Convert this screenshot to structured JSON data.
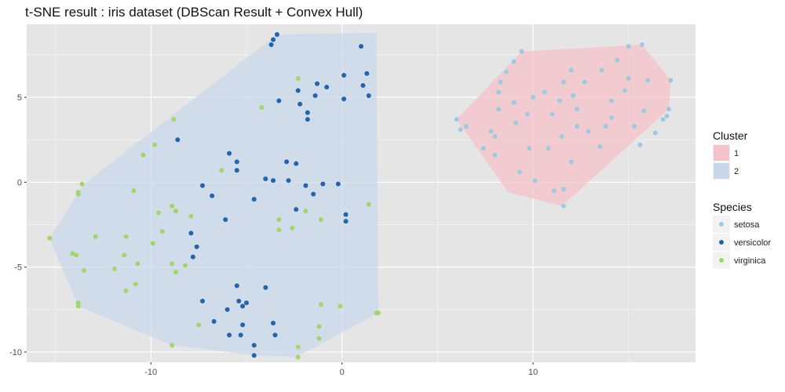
{
  "chart_data": {
    "type": "scatter",
    "title": "t-SNE result : iris dataset (DBScan Result + Convex Hull)",
    "xlabel": "",
    "ylabel": "",
    "xlim": [
      -16.5,
      18.5
    ],
    "ylim": [
      -10.6,
      9.3
    ],
    "x_ticks": [
      -10,
      0,
      10
    ],
    "y_ticks": [
      -10,
      -5,
      0,
      5
    ],
    "grid": true,
    "legend_placement": "right",
    "background": "#e5e5e5",
    "gridline_color": "#ffffff",
    "hulls": {
      "title": "Cluster",
      "groups": [
        {
          "name": "1",
          "color": "#f4c2c8",
          "points": [
            [
              6.0,
              3.7
            ],
            [
              9.4,
              7.7
            ],
            [
              15.7,
              8.1
            ],
            [
              17.2,
              6.0
            ],
            [
              17.1,
              4.3
            ],
            [
              11.5,
              -1.4
            ],
            [
              8.7,
              -0.6
            ]
          ]
        },
        {
          "name": "2",
          "color": "#c8d8ea",
          "points": [
            [
              -3.4,
              8.7
            ],
            [
              1.8,
              8.8
            ],
            [
              1.9,
              -7.7
            ],
            [
              -2.4,
              -10.3
            ],
            [
              -4.6,
              -10.2
            ],
            [
              -8.9,
              -9.6
            ],
            [
              -13.8,
              -7.3
            ],
            [
              -15.3,
              -3.3
            ],
            [
              -13.5,
              -0.1
            ]
          ]
        }
      ]
    },
    "series": [
      {
        "name": "setosa",
        "color": "#9ecae1",
        "points": [
          [
            6.0,
            3.7
          ],
          [
            6.2,
            3.1
          ],
          [
            6.5,
            3.3
          ],
          [
            7.4,
            2.0
          ],
          [
            7.8,
            3.0
          ],
          [
            8.0,
            2.7
          ],
          [
            8.0,
            1.6
          ],
          [
            8.2,
            5.3
          ],
          [
            8.3,
            5.9
          ],
          [
            8.2,
            4.3
          ],
          [
            8.6,
            6.5
          ],
          [
            9.0,
            4.7
          ],
          [
            9.1,
            3.5
          ],
          [
            9.3,
            0.6
          ],
          [
            9.4,
            7.7
          ],
          [
            9.0,
            7.1
          ],
          [
            9.7,
            4.0
          ],
          [
            9.8,
            2.0
          ],
          [
            10.0,
            5.0
          ],
          [
            10.1,
            0.1
          ],
          [
            10.6,
            5.3
          ],
          [
            10.8,
            2.0
          ],
          [
            11.0,
            4.0
          ],
          [
            11.1,
            -0.5
          ],
          [
            11.4,
            4.8
          ],
          [
            11.5,
            2.7
          ],
          [
            11.6,
            -1.4
          ],
          [
            11.6,
            -0.4
          ],
          [
            11.6,
            5.9
          ],
          [
            12.0,
            1.2
          ],
          [
            12.0,
            6.6
          ],
          [
            12.1,
            5.1
          ],
          [
            12.3,
            4.3
          ],
          [
            12.3,
            3.3
          ],
          [
            12.7,
            5.9
          ],
          [
            12.9,
            3.0
          ],
          [
            13.5,
            2.1
          ],
          [
            13.6,
            6.6
          ],
          [
            13.8,
            3.3
          ],
          [
            14.1,
            4.8
          ],
          [
            14.1,
            3.8
          ],
          [
            14.4,
            7.2
          ],
          [
            14.8,
            5.4
          ],
          [
            15.0,
            8.0
          ],
          [
            15.0,
            6.1
          ],
          [
            15.3,
            3.3
          ],
          [
            15.6,
            2.2
          ],
          [
            15.8,
            4.2
          ],
          [
            15.7,
            8.1
          ],
          [
            16.0,
            6.0
          ],
          [
            16.4,
            2.9
          ],
          [
            17.1,
            4.3
          ],
          [
            16.8,
            3.7
          ],
          [
            17.2,
            6.0
          ],
          [
            17.0,
            3.9
          ]
        ]
      },
      {
        "name": "versicolor",
        "color": "#2166ac",
        "points": [
          [
            -3.4,
            8.7
          ],
          [
            -3.6,
            8.4
          ],
          [
            -3.7,
            8.1
          ],
          [
            -3.3,
            4.8
          ],
          [
            -2.9,
            1.2
          ],
          [
            -2.8,
            0.1
          ],
          [
            -2.4,
            1.1
          ],
          [
            -2.3,
            5.4
          ],
          [
            -2.2,
            4.6
          ],
          [
            -1.8,
            4.1
          ],
          [
            -1.8,
            3.7
          ],
          [
            -1.4,
            5.1
          ],
          [
            -1.3,
            5.8
          ],
          [
            -0.8,
            5.6
          ],
          [
            -0.2,
            -0.1
          ],
          [
            0.1,
            4.9
          ],
          [
            0.1,
            6.3
          ],
          [
            0.2,
            -1.9
          ],
          [
            0.2,
            -2.3
          ],
          [
            1.0,
            8.0
          ],
          [
            1.1,
            5.7
          ],
          [
            1.3,
            6.4
          ],
          [
            1.4,
            5.1
          ],
          [
            -1.9,
            -0.2
          ],
          [
            -1.5,
            -0.7
          ],
          [
            -1.0,
            -0.1
          ],
          [
            -2.4,
            -1.6
          ],
          [
            -3.6,
            0.1
          ],
          [
            -4.0,
            0.2
          ],
          [
            -4.6,
            -1.0
          ],
          [
            -5.5,
            0.7
          ],
          [
            -5.5,
            1.2
          ],
          [
            -5.9,
            1.7
          ],
          [
            -6.1,
            -2.2
          ],
          [
            -6.8,
            -0.8
          ],
          [
            -7.3,
            -0.2
          ],
          [
            -7.9,
            -3.0
          ],
          [
            -8.6,
            2.5
          ],
          [
            -7.6,
            -3.8
          ],
          [
            -7.8,
            -4.4
          ],
          [
            -4.0,
            -6.2
          ],
          [
            -5.5,
            -6.1
          ],
          [
            -5.4,
            -7.0
          ],
          [
            -5.0,
            -7.1
          ],
          [
            -5.2,
            -7.3
          ],
          [
            -6.7,
            -8.2
          ],
          [
            -5.2,
            -8.4
          ],
          [
            -5.9,
            -9.0
          ],
          [
            -5.3,
            -9.0
          ],
          [
            -4.6,
            -9.6
          ],
          [
            -4.6,
            -10.2
          ],
          [
            -3.6,
            -8.3
          ],
          [
            -3.5,
            -9.0
          ],
          [
            -7.3,
            -7.0
          ],
          [
            -6.0,
            -7.5
          ]
        ]
      },
      {
        "name": "virginica",
        "color": "#a1d76a",
        "points": [
          [
            -2.3,
            6.1
          ],
          [
            -4.2,
            4.4
          ],
          [
            -8.8,
            3.7
          ],
          [
            -9.8,
            2.2
          ],
          [
            -10.4,
            1.6
          ],
          [
            -13.6,
            -0.1
          ],
          [
            -13.8,
            -0.6
          ],
          [
            -10.9,
            -0.5
          ],
          [
            -13.8,
            -0.7
          ],
          [
            -6.3,
            0.7
          ],
          [
            -8.9,
            -1.4
          ],
          [
            -8.7,
            -1.7
          ],
          [
            -9.6,
            -1.8
          ],
          [
            -7.9,
            -2.0
          ],
          [
            -3.3,
            -2.2
          ],
          [
            -1.9,
            -1.7
          ],
          [
            -1.1,
            -2.2
          ],
          [
            -3.3,
            -2.8
          ],
          [
            -2.6,
            -2.7
          ],
          [
            1.4,
            -1.3
          ],
          [
            -15.3,
            -3.3
          ],
          [
            -12.9,
            -3.2
          ],
          [
            -11.3,
            -3.2
          ],
          [
            -9.4,
            -2.9
          ],
          [
            -9.9,
            -3.6
          ],
          [
            -11.4,
            -4.3
          ],
          [
            -13.9,
            -4.3
          ],
          [
            -14.1,
            -4.2
          ],
          [
            -8.9,
            -4.8
          ],
          [
            -8.2,
            -4.9
          ],
          [
            -10.7,
            -4.8
          ],
          [
            -11.9,
            -5.1
          ],
          [
            -8.7,
            -5.3
          ],
          [
            -13.5,
            -5.2
          ],
          [
            -10.8,
            -6.0
          ],
          [
            -11.3,
            -6.4
          ],
          [
            -13.8,
            -7.1
          ],
          [
            -13.8,
            -7.3
          ],
          [
            -7.5,
            -8.4
          ],
          [
            -8.9,
            -9.6
          ],
          [
            -2.3,
            -9.7
          ],
          [
            -2.3,
            -10.3
          ],
          [
            -1.1,
            -7.2
          ],
          [
            -1.2,
            -8.5
          ],
          [
            -1.2,
            -9.2
          ],
          [
            -0.1,
            -7.3
          ],
          [
            1.8,
            -7.7
          ],
          [
            1.9,
            -7.7
          ]
        ]
      }
    ]
  },
  "legend": {
    "cluster_title": "Cluster",
    "cluster_items": [
      {
        "label": "1",
        "color": "#f4c2c8"
      },
      {
        "label": "2",
        "color": "#c8d8ea"
      }
    ],
    "species_title": "Species",
    "species_items": [
      {
        "label": "setosa",
        "color": "#9ecae1"
      },
      {
        "label": "versicolor",
        "color": "#2166ac"
      },
      {
        "label": "virginica",
        "color": "#a1d76a"
      }
    ]
  }
}
